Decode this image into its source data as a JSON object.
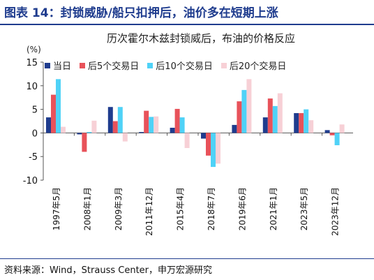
{
  "figure_title": "图表 14：封锁威胁/船只扣押后，油价多在短期上涨",
  "source": "资料来源：Wind，Strauss Center，申万宏源研究",
  "chart_data": {
    "type": "bar",
    "title": "历次霍尔木兹封锁威后，布油的价格反应",
    "unit": "(%)",
    "ylim": [
      -10,
      15
    ],
    "yticks": [
      15,
      10,
      5,
      0,
      -5,
      -10
    ],
    "grid": false,
    "legend_position": "top",
    "categories": [
      "1997年5月",
      "2008年1月",
      "2009年3月",
      "2011年12月",
      "2015年4月",
      "2018年7月",
      "2019年6月",
      "2021年1月",
      "2023年5月",
      "2023年12月"
    ],
    "series": [
      {
        "name": "当日",
        "color": "#1f3c8e",
        "values": [
          3.3,
          -0.3,
          5.5,
          0.2,
          1.1,
          -1.2,
          1.7,
          3.3,
          4.2,
          0.6
        ]
      },
      {
        "name": "后5个交易日",
        "color": "#e8525a",
        "values": [
          8.1,
          -4.0,
          2.5,
          4.7,
          5.1,
          -4.8,
          6.7,
          7.3,
          4.2,
          -0.5
        ]
      },
      {
        "name": "后10个交易日",
        "color": "#4fd2f7",
        "values": [
          11.4,
          0.2,
          5.5,
          3.4,
          3.3,
          -7.2,
          9.1,
          5.7,
          5.0,
          -2.6
        ]
      },
      {
        "name": "后20个交易日",
        "color": "#f7d0d6",
        "values": [
          1.3,
          2.6,
          -1.8,
          3.5,
          -3.2,
          -6.5,
          11.4,
          8.4,
          2.7,
          1.8
        ]
      }
    ]
  }
}
